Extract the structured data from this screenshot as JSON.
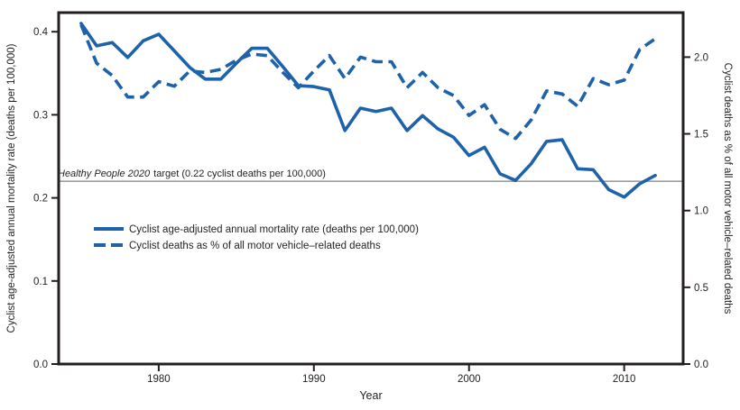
{
  "figure": {
    "xlabel": "Year",
    "ylabel_left": "Cyclist age-adjusted annual mortality rate (deaths per 100,000)",
    "ylabel_right": "Cyclist deaths as % of all motor vehicle–related deaths",
    "target_label_italic": "Healthy People 2020",
    "target_label_rest": "target (0.22 cyclist deaths per 100,000)"
  },
  "legend": {
    "items": [
      {
        "label": "Cyclist age-adjusted annual mortality rate (deaths per 100,000)",
        "style": "solid"
      },
      {
        "label": "Cyclist deaths as % of all motor vehicle–related deaths",
        "style": "dashed"
      }
    ]
  },
  "colors": {
    "line_blue": "#1E62A9",
    "axis_black": "#231f20",
    "target_gray": "#9c9ea0"
  },
  "chart_data": {
    "type": "line",
    "title": "",
    "xlabel": "Year",
    "ylabel_left": "Cyclist age-adjusted annual mortality rate (deaths per 100,000)",
    "ylabel_right": "Cyclist deaths as % of all motor vehicle–related deaths",
    "grid": false,
    "legend_position": "inside-left-middle",
    "x": [
      1975,
      1976,
      1977,
      1978,
      1979,
      1980,
      1981,
      1982,
      1983,
      1984,
      1985,
      1986,
      1987,
      1988,
      1989,
      1990,
      1991,
      1992,
      1993,
      1994,
      1995,
      1996,
      1997,
      1998,
      1999,
      2000,
      2001,
      2002,
      2003,
      2004,
      2005,
      2006,
      2007,
      2008,
      2009,
      2010,
      2011,
      2012
    ],
    "series": [
      {
        "name": "Cyclist age-adjusted annual mortality rate (deaths per 100,000)",
        "axis": "left",
        "style": "solid",
        "values": [
          0.41,
          0.383,
          0.387,
          0.369,
          0.389,
          0.397,
          0.377,
          0.357,
          0.343,
          0.343,
          0.362,
          0.38,
          0.38,
          0.358,
          0.335,
          0.334,
          0.33,
          0.281,
          0.308,
          0.304,
          0.308,
          0.281,
          0.299,
          0.283,
          0.273,
          0.251,
          0.261,
          0.229,
          0.221,
          0.241,
          0.268,
          0.27,
          0.235,
          0.234,
          0.21,
          0.201,
          0.217,
          0.227
        ]
      },
      {
        "name": "Cyclist deaths as % of all motor vehicle–related deaths",
        "axis": "right",
        "style": "dashed",
        "values": [
          2.21,
          1.96,
          1.88,
          1.74,
          1.74,
          1.84,
          1.81,
          1.91,
          1.9,
          1.92,
          1.98,
          2.02,
          2.01,
          1.9,
          1.8,
          1.91,
          2.01,
          1.86,
          2.0,
          1.97,
          1.97,
          1.8,
          1.9,
          1.8,
          1.75,
          1.62,
          1.69,
          1.53,
          1.47,
          1.59,
          1.78,
          1.76,
          1.68,
          1.86,
          1.82,
          1.85,
          2.05,
          2.12
        ]
      }
    ],
    "x_axis": {
      "ticks": [
        1980,
        1990,
        2000,
        2010
      ],
      "range": [
        1973.55,
        2013.8
      ]
    },
    "left_axis": {
      "ticks": [
        0.0,
        0.1,
        0.2,
        0.3,
        0.4
      ],
      "range": [
        0,
        0.423
      ]
    },
    "right_axis": {
      "ticks": [
        0.0,
        0.5,
        1.0,
        1.5,
        2.0
      ],
      "range": [
        0,
        2.29
      ]
    },
    "target_line": {
      "value": 0.22,
      "axis": "left"
    }
  }
}
